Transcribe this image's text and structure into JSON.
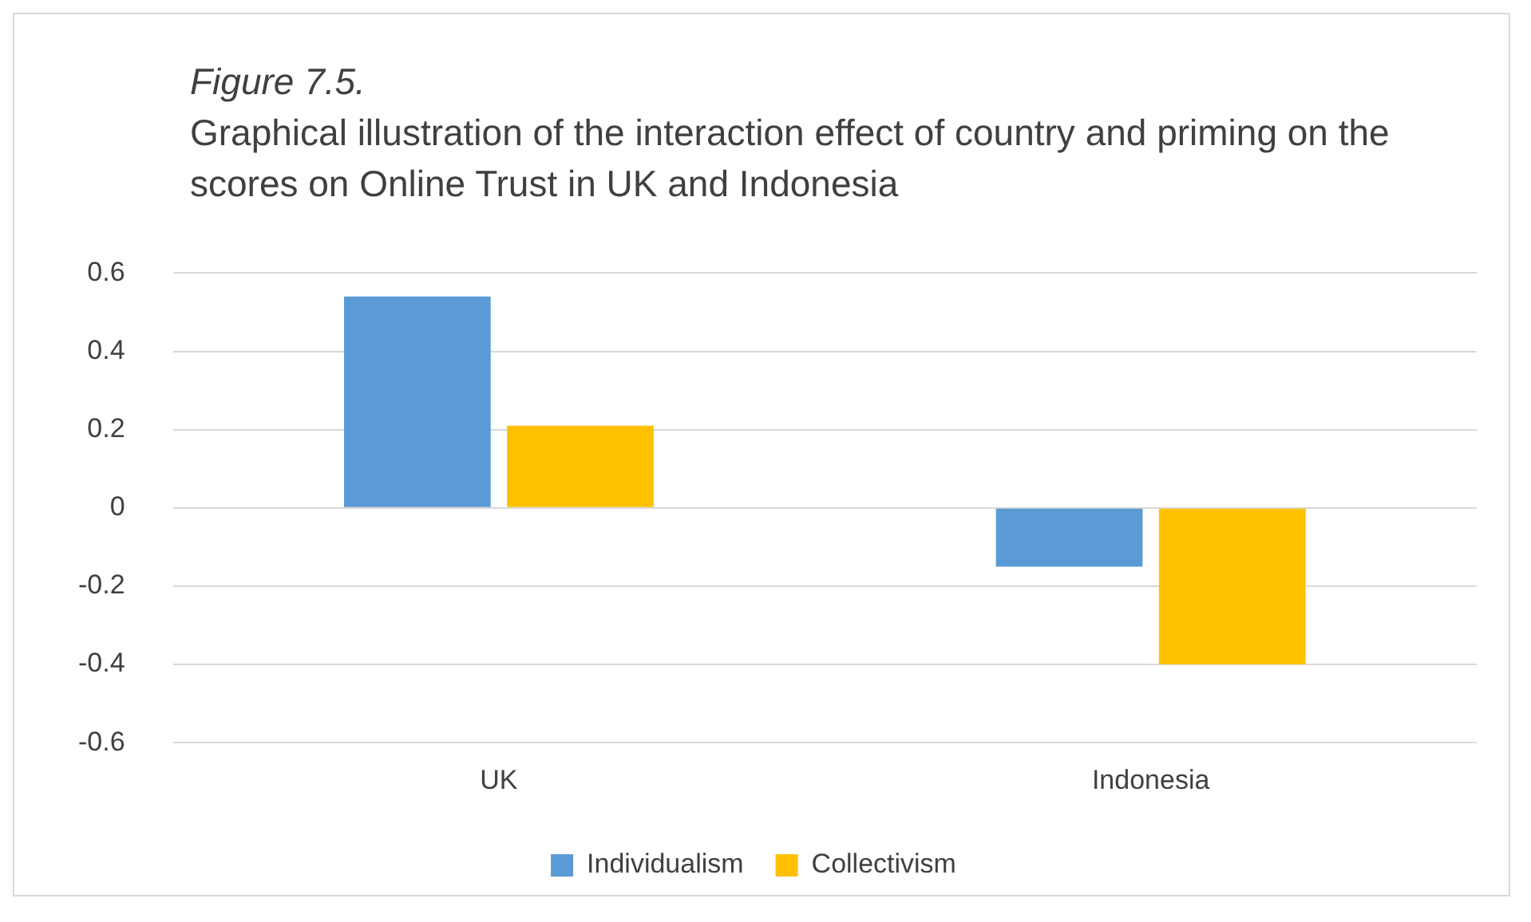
{
  "chart_data": {
    "type": "bar",
    "title": "Figure 7.5.",
    "subtitle": "Graphical illustration of the interaction effect of country and priming on the scores on Online Trust in UK and Indonesia",
    "categories": [
      "UK",
      "Indonesia"
    ],
    "series": [
      {
        "name": "Individualism",
        "color": "#5b9bd5",
        "values": [
          0.54,
          -0.15
        ]
      },
      {
        "name": "Collectivism",
        "color": "#ffc000",
        "values": [
          0.21,
          -0.4
        ]
      }
    ],
    "ylim": [
      -0.6,
      0.6
    ],
    "yticks": [
      -0.6,
      -0.4,
      -0.2,
      0,
      0.2,
      0.4,
      0.6
    ],
    "grid": "y",
    "legend": "bottom"
  }
}
